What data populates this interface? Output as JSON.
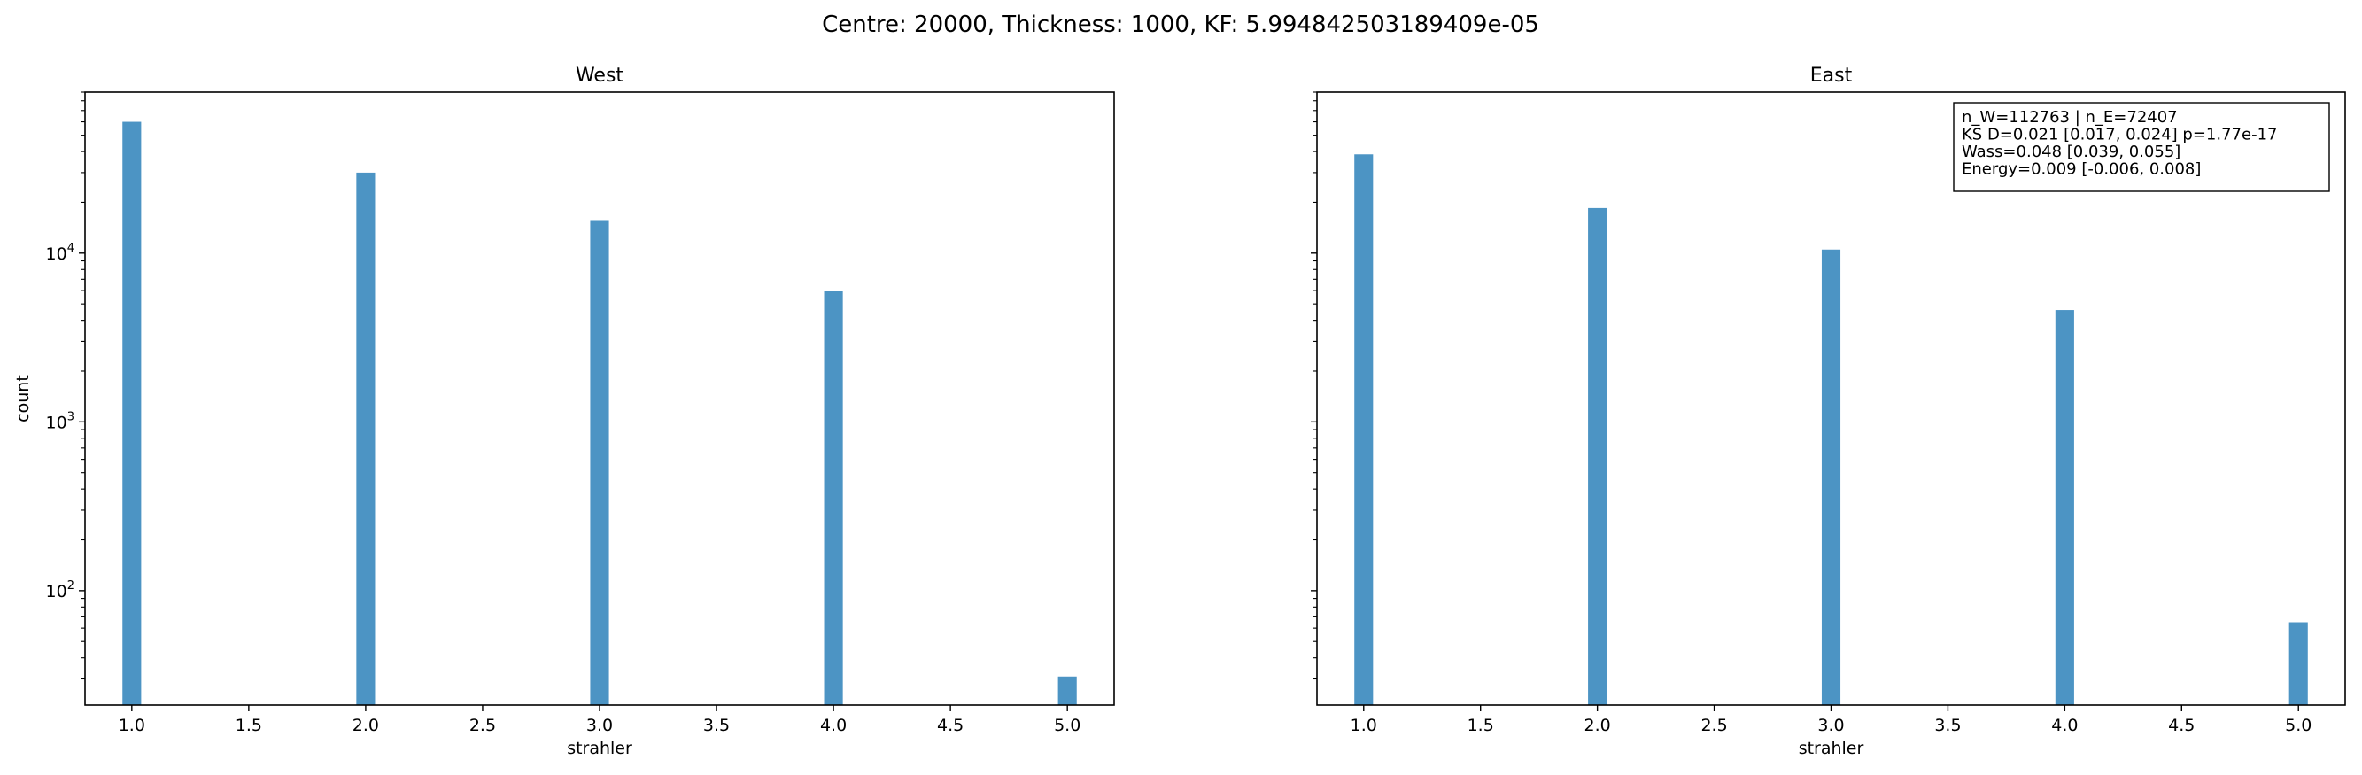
{
  "suptitle": "Centre: 20000, Thickness: 1000, KF: 5.994842503189409e-05",
  "bar_color": "#4c94c4",
  "chart_data": [
    {
      "type": "bar",
      "title": "West",
      "xlabel": "strahler",
      "ylabel": "count",
      "yscale": "log",
      "xlim": [
        0.8,
        5.2
      ],
      "ylim": [
        21,
        90000
      ],
      "xticks": [
        "1.0",
        "1.5",
        "2.0",
        "2.5",
        "3.0",
        "3.5",
        "4.0",
        "4.5",
        "5.0"
      ],
      "yticks": [
        {
          "value": 100,
          "label": "10",
          "exp": "2"
        },
        {
          "value": 1000,
          "label": "10",
          "exp": "3"
        },
        {
          "value": 10000,
          "label": "10",
          "exp": "4"
        }
      ],
      "x": [
        1,
        2,
        3,
        4,
        5
      ],
      "values": [
        60000,
        30000,
        15700,
        6000,
        31
      ]
    },
    {
      "type": "bar",
      "title": "East",
      "xlabel": "strahler",
      "ylabel": "",
      "yscale": "log",
      "xlim": [
        0.8,
        5.2
      ],
      "ylim": [
        21,
        90000
      ],
      "xticks": [
        "1.0",
        "1.5",
        "2.0",
        "2.5",
        "3.0",
        "3.5",
        "4.0",
        "4.5",
        "5.0"
      ],
      "yticks": [],
      "x": [
        1,
        2,
        3,
        4,
        5
      ],
      "values": [
        38500,
        18500,
        10500,
        4600,
        65
      ],
      "annotation": [
        "n_W=112763 | n_E=72407",
        "KS D=0.021 [0.017, 0.024]  p=1.77e-17",
        "Wass=0.048 [0.039, 0.055]",
        "Energy=0.009 [-0.006, 0.008]"
      ]
    }
  ]
}
